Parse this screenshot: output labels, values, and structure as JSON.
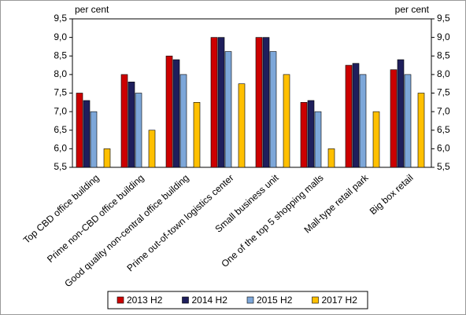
{
  "chart_data": {
    "type": "bar",
    "y_label": "per cent",
    "y2_label": "per cent",
    "categories": [
      "Top CBD office building",
      "Prime non-CBD office building",
      "Good quality non-central office building",
      "Prime out-of-town logistics center",
      "Small business unit",
      "One of the top 5 shopping malls",
      "Mall-type retail park",
      "Big box retail"
    ],
    "series": [
      {
        "name": "2013 H2",
        "color": "#cc0000",
        "values": [
          7.5,
          8.0,
          8.5,
          9.0,
          9.0,
          7.25,
          8.25,
          8.13
        ]
      },
      {
        "name": "2014 H2",
        "color": "#1f1f5c",
        "values": [
          7.3,
          7.8,
          8.4,
          9.0,
          9.0,
          7.3,
          8.3,
          8.4
        ]
      },
      {
        "name": "2015 H2",
        "color": "#7da7d9",
        "values": [
          7.0,
          7.5,
          8.0,
          8.62,
          8.62,
          7.0,
          8.0,
          8.0
        ]
      },
      {
        "name": "2017 H2",
        "color": "#ffc000",
        "values": [
          6.0,
          6.5,
          7.25,
          7.75,
          8.0,
          6.0,
          7.0,
          7.5
        ]
      }
    ],
    "ylim": [
      5.5,
      9.5
    ],
    "yticks": [
      {
        "value": 5.5,
        "label": "5,5"
      },
      {
        "value": 6.0,
        "label": "6,0"
      },
      {
        "value": 6.5,
        "label": "6,5"
      },
      {
        "value": 7.0,
        "label": "7,0"
      },
      {
        "value": 7.5,
        "label": "7,5"
      },
      {
        "value": 8.0,
        "label": "8,0"
      },
      {
        "value": 8.5,
        "label": "8,5"
      },
      {
        "value": 9.0,
        "label": "9,0"
      },
      {
        "value": 9.5,
        "label": "9,5"
      }
    ],
    "y2lim": [
      5.5,
      9.5
    ],
    "y2ticks": [
      {
        "value": 5.5,
        "label": "5,5"
      },
      {
        "value": 6.0,
        "label": "6,0"
      },
      {
        "value": 6.5,
        "label": "6,5"
      },
      {
        "value": 7.0,
        "label": "7,0"
      },
      {
        "value": 7.5,
        "label": "7,5"
      },
      {
        "value": 8.0,
        "label": "8,0"
      },
      {
        "value": 8.5,
        "label": "8,5"
      },
      {
        "value": 9.0,
        "label": "9,0"
      },
      {
        "value": 9.5,
        "label": "9,5"
      }
    ],
    "grid": false,
    "legend": "bottom"
  }
}
